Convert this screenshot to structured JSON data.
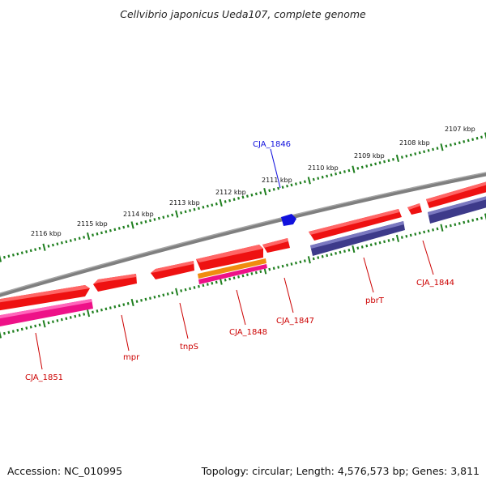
{
  "title": "Cellvibrio japonicus Ueda107, complete genome",
  "footer": {
    "accession": "Accession: NC_010995",
    "summary": "Topology: circular; Length: 4,576,573 bp; Genes: 3,811"
  },
  "colors": {
    "backbone": "#7f7f7f",
    "tick": "#1f7f1f",
    "gene_red": "#ee1111",
    "gene_label": "#cc0000",
    "highlight": "#1111dd",
    "cds_pink": "#ee1188",
    "cds_purple": "#3d3a8a",
    "cds_orange": "#f08c10"
  },
  "ruler": {
    "unit": "kbp",
    "labels": [
      {
        "kbp": 2107,
        "text": "2107 kbp"
      },
      {
        "kbp": 2108,
        "text": "2108 kbp"
      },
      {
        "kbp": 2109,
        "text": "2109 kbp"
      },
      {
        "kbp": 2110,
        "text": "2110 kbp"
      },
      {
        "kbp": 2111,
        "text": "2111 kbp"
      },
      {
        "kbp": 2112,
        "text": "2112 kbp"
      },
      {
        "kbp": 2113,
        "text": "2113 kbp"
      },
      {
        "kbp": 2114,
        "text": "2114 kbp"
      },
      {
        "kbp": 2115,
        "text": "2115 kbp"
      },
      {
        "kbp": 2116,
        "text": "2116 kbp"
      }
    ]
  },
  "genes": [
    {
      "name": "CJA_1851",
      "label_color": "#cc0000"
    },
    {
      "name": "mpr",
      "label_color": "#cc0000"
    },
    {
      "name": "tnpS",
      "label_color": "#cc0000"
    },
    {
      "name": "CJA_1848",
      "label_color": "#cc0000"
    },
    {
      "name": "CJA_1847",
      "label_color": "#cc0000"
    },
    {
      "name": "CJA_1846",
      "label_color": "#1111dd"
    },
    {
      "name": "pbrT",
      "label_color": "#cc0000"
    },
    {
      "name": "CJA_1844",
      "label_color": "#cc0000"
    }
  ]
}
